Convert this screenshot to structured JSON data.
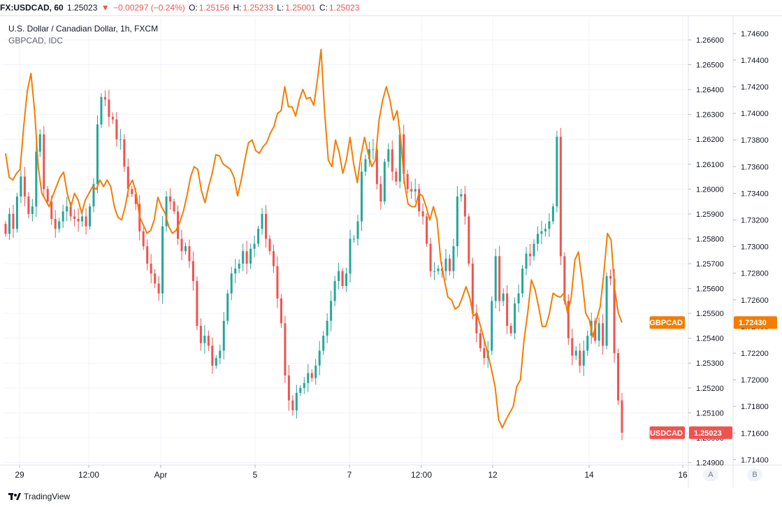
{
  "header": {
    "symbol": "FX:USDCAD, 60",
    "last": "1.25023",
    "change_arrow": "▼",
    "change": "−0.00297 (−0.24%)",
    "o_label": "O:",
    "o": "1.25156",
    "h_label": "H:",
    "h": "1.25233",
    "l_label": "L:",
    "l": "1.25001",
    "c_label": "C:",
    "c": "1.25023"
  },
  "legend": {
    "main": "U.S. Dollar / Canadian Dollar, 1h, FXCM",
    "compare": "GBPCAD, IDC"
  },
  "footer": {
    "brand": "TradingView",
    "axis_a": "A",
    "axis_b": "B"
  },
  "colors": {
    "up": "#26a69a",
    "down": "#ef5350",
    "compare_line": "#f57c00",
    "grid": "#f0f3fa"
  },
  "chart_data": {
    "type": "candlestick+line",
    "x_tick_labels": [
      "29",
      "12:00",
      "Apr",
      "5",
      "7",
      "12:00",
      "12",
      "14",
      "16"
    ],
    "left_axis": {
      "name": "USDCAD",
      "range": [
        1.2489,
        1.2669
      ],
      "ticks": [
        "1.26600",
        "1.26500",
        "1.26400",
        "1.26300",
        "1.26200",
        "1.26100",
        "1.26000",
        "1.25900",
        "1.25800",
        "1.25700",
        "1.25600",
        "1.25500",
        "1.25400",
        "1.25300",
        "1.25200",
        "1.25100",
        "1.25000",
        "1.24900"
      ]
    },
    "right_axis": {
      "name": "GBPCAD",
      "range": [
        1.7136,
        1.7472
      ],
      "ticks": [
        "1.74600",
        "1.74400",
        "1.74200",
        "1.74000",
        "1.73800",
        "1.73600",
        "1.73400",
        "1.73200",
        "1.73000",
        "1.72800",
        "1.72600",
        "1.72400",
        "1.72200",
        "1.72000",
        "1.71800",
        "1.71600",
        "1.71400"
      ]
    },
    "series": [
      {
        "name": "USDCAD",
        "kind": "candlestick",
        "last_label": "USDCAD",
        "last_value": "1.25023",
        "color": "#ef5350",
        "close": [
          1.2582,
          1.259,
          1.2584,
          1.2597,
          1.2605,
          1.2597,
          1.259,
          1.2593,
          1.2615,
          1.2622,
          1.26,
          1.2595,
          1.2588,
          1.2584,
          1.2587,
          1.2591,
          1.2593,
          1.2589,
          1.2588,
          1.2587,
          1.2589,
          1.2585,
          1.2593,
          1.2602,
          1.2626,
          1.2637,
          1.2636,
          1.2629,
          1.2628,
          1.262,
          1.262,
          1.2609,
          1.26,
          1.2598,
          1.2594,
          1.2583,
          1.2577,
          1.257,
          1.2566,
          1.2562,
          1.2558,
          1.2585,
          1.2597,
          1.2595,
          1.2591,
          1.258,
          1.2575,
          1.2577,
          1.2571,
          1.2563,
          1.2545,
          1.2538,
          1.2541,
          1.2537,
          1.2529,
          1.2532,
          1.2535,
          1.2547,
          1.2558,
          1.2566,
          1.2568,
          1.257,
          1.2575,
          1.257,
          1.2576,
          1.2578,
          1.2584,
          1.259,
          1.258,
          1.2575,
          1.2569,
          1.2556,
          1.2546,
          1.2525,
          1.2515,
          1.2511,
          1.2518,
          1.252,
          1.2522,
          1.2526,
          1.2524,
          1.2529,
          1.2535,
          1.2541,
          1.2547,
          1.2555,
          1.2563,
          1.2567,
          1.2561,
          1.2566,
          1.258,
          1.258,
          1.2587,
          1.2607,
          1.2612,
          1.2616,
          1.2616,
          1.2602,
          1.2595,
          1.2611,
          1.2616,
          1.2607,
          1.2603,
          1.2622,
          1.2606,
          1.26,
          1.2599,
          1.26,
          1.2591,
          1.2589,
          1.2578,
          1.2567,
          1.2567,
          1.2568,
          1.2567,
          1.2572,
          1.2567,
          1.2577,
          1.2597,
          1.2598,
          1.2589,
          1.257,
          1.255,
          1.2542,
          1.2536,
          1.2532,
          1.2535,
          1.2555,
          1.2573,
          1.2555,
          1.2558,
          1.2545,
          1.2542,
          1.2554,
          1.2558,
          1.2568,
          1.2574,
          1.2573,
          1.2578,
          1.2582,
          1.2583,
          1.2584,
          1.2587,
          1.2593,
          1.2621,
          1.2573,
          1.2555,
          1.254,
          1.2533,
          1.2535,
          1.2529,
          1.2535,
          1.2541,
          1.2547,
          1.2539,
          1.2546,
          1.2537,
          1.2565,
          1.2564,
          1.2534,
          1.2515,
          1.2502
        ]
      },
      {
        "name": "GBPCAD",
        "kind": "line",
        "last_label": "GBPCAD",
        "last_value": "1.72430",
        "color": "#f57c00",
        "close": [
          1.737,
          1.7352,
          1.735,
          1.7355,
          1.7358,
          1.739,
          1.7417,
          1.743,
          1.7402,
          1.736,
          1.734,
          1.7335,
          1.733,
          1.7338,
          1.7345,
          1.7352,
          1.7356,
          1.734,
          1.733,
          1.734,
          1.7335,
          1.7325,
          1.7335,
          1.734,
          1.7345,
          1.7343,
          1.735,
          1.7345,
          1.735,
          1.7345,
          1.733,
          1.7322,
          1.732,
          1.733,
          1.7345,
          1.735,
          1.734,
          1.7322,
          1.7316,
          1.731,
          1.7312,
          1.732,
          1.7337,
          1.733,
          1.7325,
          1.7315,
          1.731,
          1.7312,
          1.7318,
          1.7326,
          1.7338,
          1.7352,
          1.736,
          1.7358,
          1.7342,
          1.7333,
          1.7345,
          1.7355,
          1.7369,
          1.7368,
          1.7362,
          1.736,
          1.7358,
          1.7352,
          1.7338,
          1.735,
          1.7365,
          1.7378,
          1.738,
          1.7372,
          1.737,
          1.7375,
          1.7378,
          1.7385,
          1.739,
          1.74,
          1.7402,
          1.742,
          1.7405,
          1.7405,
          1.7398,
          1.741,
          1.7418,
          1.7411,
          1.7412,
          1.7406,
          1.7425,
          1.7448,
          1.74,
          1.7365,
          1.736,
          1.738,
          1.7371,
          1.7355,
          1.7365,
          1.7382,
          1.7362,
          1.7348,
          1.7368,
          1.7382,
          1.737,
          1.736,
          1.7365,
          1.7395,
          1.741,
          1.742,
          1.741,
          1.7395,
          1.7402,
          1.738,
          1.7348,
          1.7332,
          1.733,
          1.733,
          1.734,
          1.7338,
          1.733,
          1.732,
          1.733,
          1.732,
          1.729,
          1.7275,
          1.7262,
          1.726,
          1.7253,
          1.7255,
          1.7262,
          1.727,
          1.7262,
          1.7248,
          1.725,
          1.724,
          1.723,
          1.722,
          1.7208,
          1.7195,
          1.717,
          1.7164,
          1.717,
          1.7175,
          1.718,
          1.7195,
          1.72,
          1.723,
          1.725,
          1.7275,
          1.7268,
          1.7255,
          1.724,
          1.724,
          1.725,
          1.7265,
          1.7263,
          1.7262,
          1.7265,
          1.725,
          1.7262,
          1.729,
          1.7296,
          1.7275,
          1.725,
          1.7245,
          1.7232,
          1.7245,
          1.7255,
          1.728,
          1.731,
          1.7305,
          1.7268,
          1.725,
          1.7243
        ]
      }
    ]
  }
}
